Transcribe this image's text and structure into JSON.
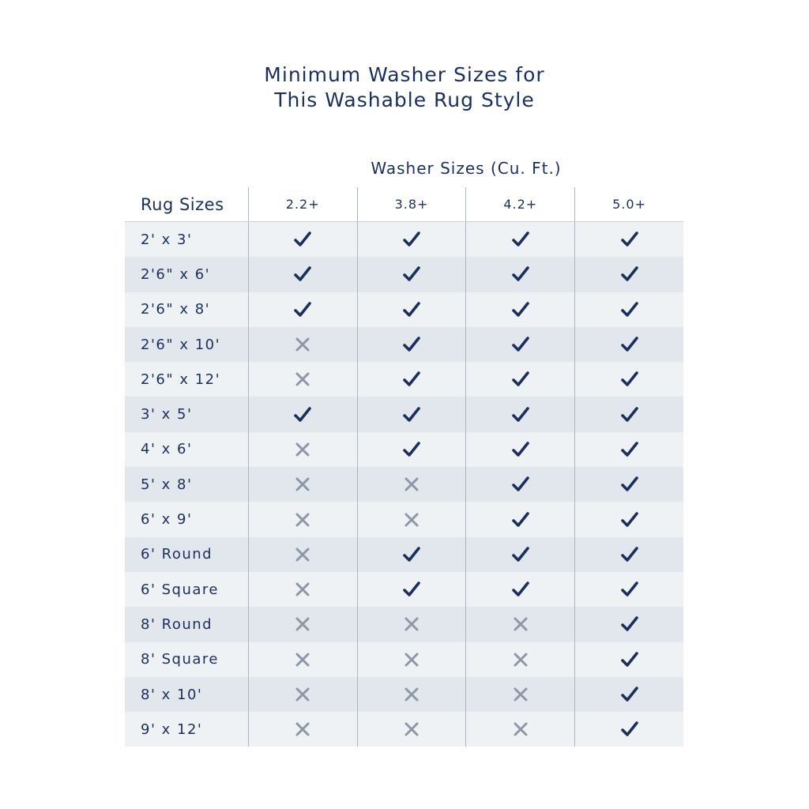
{
  "title": [
    "Minimum Washer Sizes for",
    "This Washable Rug Style"
  ],
  "table": {
    "caption": "Washer Sizes (Cu. Ft.)",
    "header": [
      "Rug Sizes",
      "2.2+",
      "3.8+",
      "4.2+",
      "5.0+"
    ],
    "rows": [
      {
        "size": "2' x 3'",
        "fits": [
          true,
          true,
          true,
          true
        ]
      },
      {
        "size": "2'6\" x 6'",
        "fits": [
          true,
          true,
          true,
          true
        ]
      },
      {
        "size": "2'6\" x 8'",
        "fits": [
          true,
          true,
          true,
          true
        ]
      },
      {
        "size": "2'6\" x 10'",
        "fits": [
          false,
          true,
          true,
          true
        ]
      },
      {
        "size": "2'6\" x 12'",
        "fits": [
          false,
          true,
          true,
          true
        ]
      },
      {
        "size": "3' x 5'",
        "fits": [
          true,
          true,
          true,
          true
        ]
      },
      {
        "size": "4' x 6'",
        "fits": [
          false,
          true,
          true,
          true
        ]
      },
      {
        "size": "5' x 8'",
        "fits": [
          false,
          false,
          true,
          true
        ]
      },
      {
        "size": "6' x 9'",
        "fits": [
          false,
          false,
          true,
          true
        ]
      },
      {
        "size": "6' Round",
        "fits": [
          false,
          true,
          true,
          true
        ]
      },
      {
        "size": "6' Square",
        "fits": [
          false,
          true,
          true,
          true
        ]
      },
      {
        "size": "8' Round",
        "fits": [
          false,
          false,
          false,
          true
        ]
      },
      {
        "size": "8' Square",
        "fits": [
          false,
          false,
          false,
          true
        ]
      },
      {
        "size": "8' x 10'",
        "fits": [
          false,
          false,
          false,
          true
        ]
      },
      {
        "size": "9' x 12'",
        "fits": [
          false,
          false,
          false,
          true
        ]
      }
    ]
  }
}
